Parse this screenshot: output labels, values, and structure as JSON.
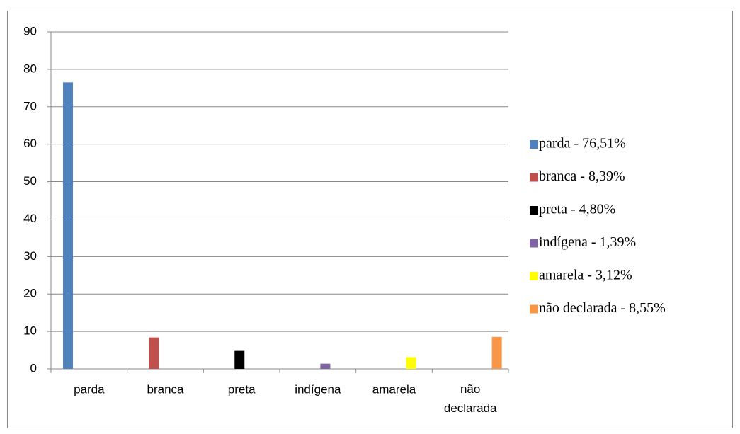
{
  "chart_data": {
    "type": "bar",
    "categories": [
      "parda",
      "branca",
      "preta",
      "indígena",
      "amarela",
      "não declarada"
    ],
    "series": [
      {
        "name": "parda - 76,51%",
        "color": "#4f81bd",
        "values": [
          76.51,
          null,
          null,
          null,
          null,
          null
        ]
      },
      {
        "name": "branca - 8,39%",
        "color": "#c0504d",
        "values": [
          null,
          8.39,
          null,
          null,
          null,
          null
        ]
      },
      {
        "name": "preta - 4,80%",
        "color": "#000000",
        "values": [
          null,
          null,
          4.8,
          null,
          null,
          null
        ]
      },
      {
        "name": "indígena - 1,39%",
        "color": "#8064a2",
        "values": [
          null,
          null,
          null,
          1.39,
          null,
          null
        ]
      },
      {
        "name": "amarela - 3,12%",
        "color": "#ffff00",
        "values": [
          null,
          null,
          null,
          null,
          3.12,
          null
        ]
      },
      {
        "name": "não declarada - 8,55%",
        "color": "#f79646",
        "values": [
          null,
          null,
          null,
          null,
          null,
          8.55
        ]
      }
    ],
    "ylim": [
      0,
      90
    ],
    "yticks": [
      0,
      10,
      20,
      30,
      40,
      50,
      60,
      70,
      80,
      90
    ],
    "grid": true,
    "legend": "right"
  }
}
